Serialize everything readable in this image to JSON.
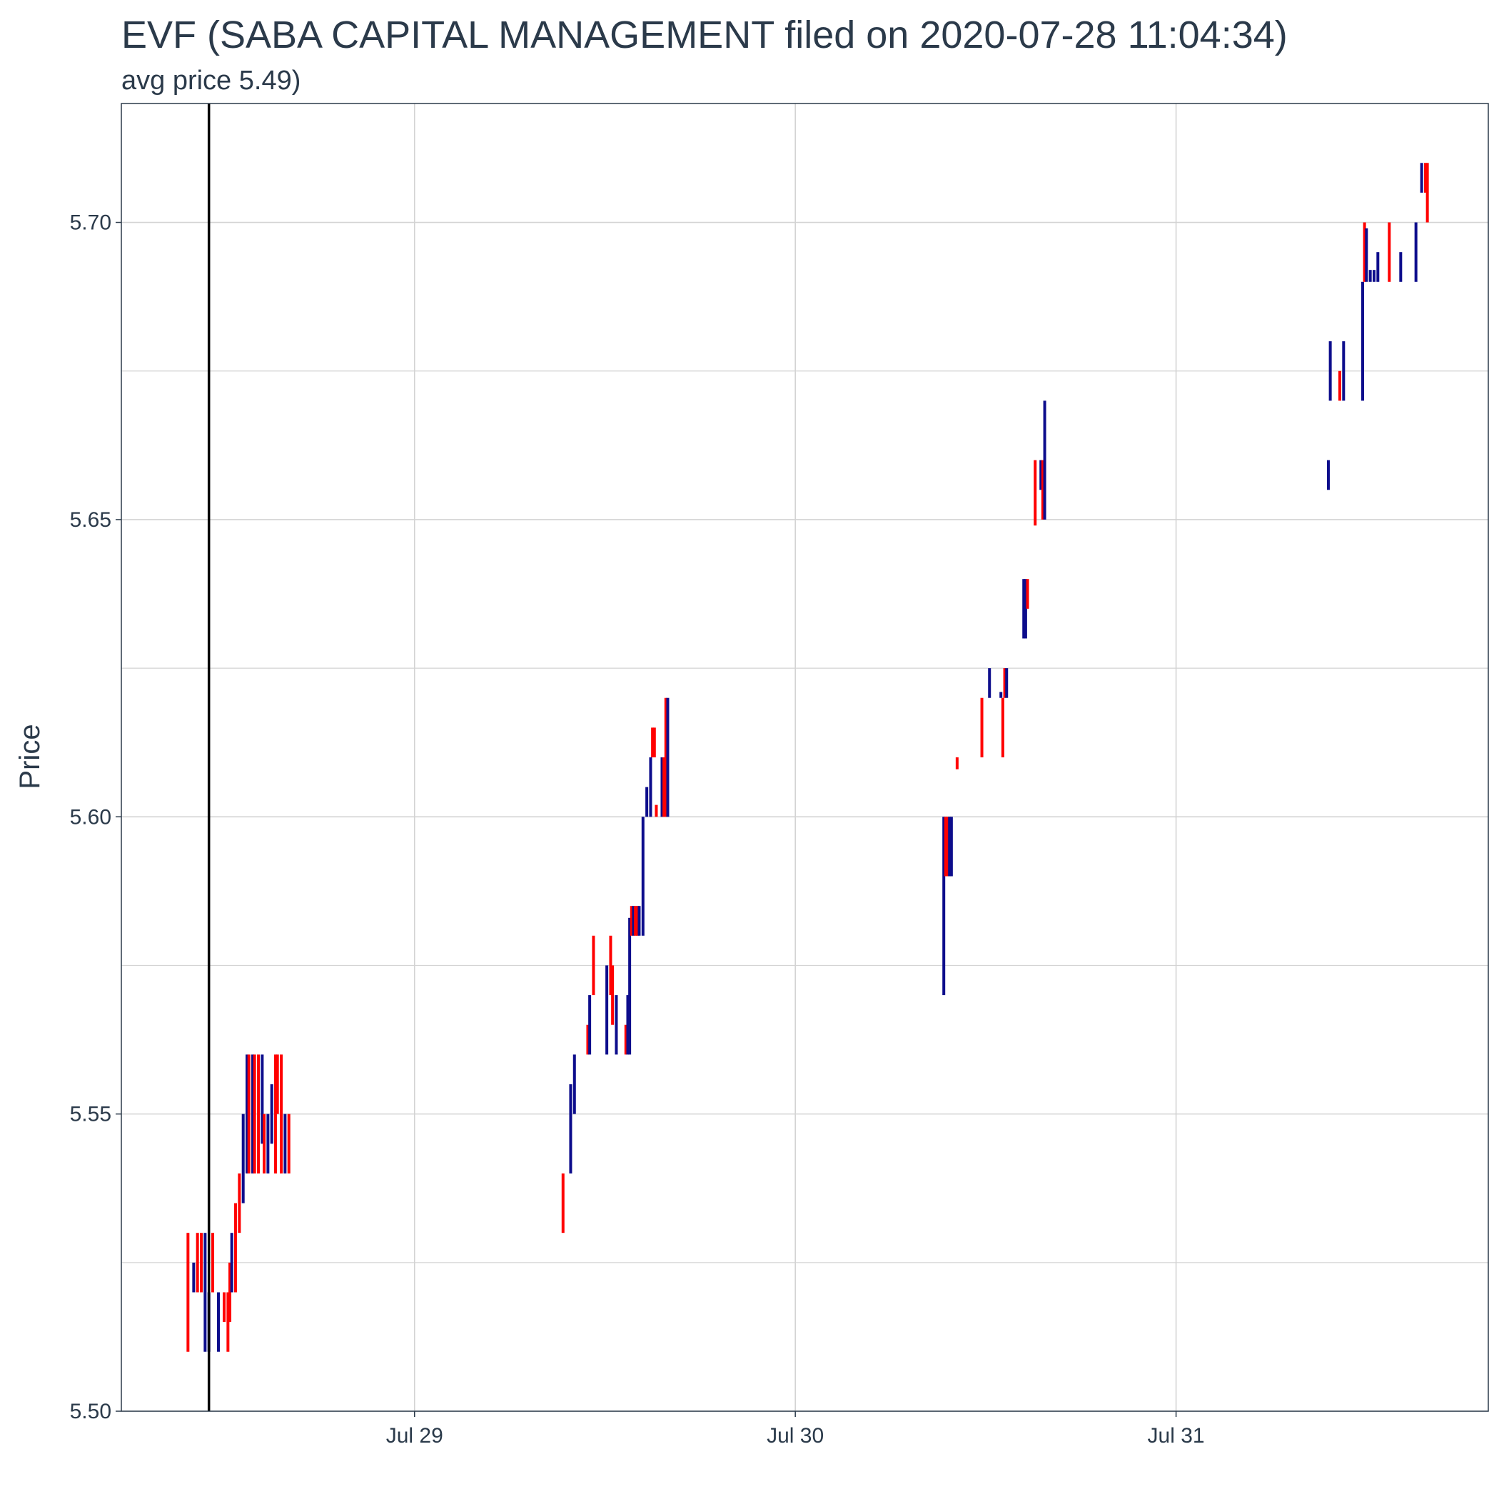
{
  "chart_data": {
    "type": "candlestick",
    "title": "EVF (SABA CAPITAL MANAGEMENT filed on 2020-07-28 11:04:34)",
    "subtitle": "avg price 5.49)",
    "ylabel": "Price",
    "xlabel": "",
    "ylim": [
      5.5,
      5.72
    ],
    "y_ticks": [
      "5.50",
      "5.55",
      "5.60",
      "5.65",
      "5.70"
    ],
    "y_tick_values": [
      5.5,
      5.55,
      5.6,
      5.65,
      5.7
    ],
    "y_minor_values": [
      5.525,
      5.575,
      5.625,
      5.675
    ],
    "xlim": [
      28.23,
      31.82
    ],
    "x_ticks": [
      "Jul 29",
      "Jul 30",
      "Jul 31"
    ],
    "x_tick_values": [
      29.0,
      30.0,
      31.0
    ],
    "filing_marker_x": 28.46,
    "grid": true,
    "legend": "none",
    "colors": {
      "up": "#0d0d8c",
      "down": "#ff0000",
      "marker": "#000000",
      "grid": "#d3d3d3",
      "text": "#2b3a4a"
    },
    "series": [
      {
        "x": 28.405,
        "low": 5.51,
        "high": 5.53,
        "color": "down"
      },
      {
        "x": 28.42,
        "low": 5.52,
        "high": 5.525,
        "color": "up"
      },
      {
        "x": 28.43,
        "low": 5.52,
        "high": 5.53,
        "color": "down"
      },
      {
        "x": 28.44,
        "low": 5.52,
        "high": 5.53,
        "color": "down"
      },
      {
        "x": 28.45,
        "low": 5.51,
        "high": 5.53,
        "color": "up"
      },
      {
        "x": 28.46,
        "low": 5.51,
        "high": 5.52,
        "color": "up"
      },
      {
        "x": 28.47,
        "low": 5.52,
        "high": 5.53,
        "color": "down"
      },
      {
        "x": 28.485,
        "low": 5.51,
        "high": 5.52,
        "color": "up"
      },
      {
        "x": 28.5,
        "low": 5.515,
        "high": 5.52,
        "color": "down"
      },
      {
        "x": 28.51,
        "low": 5.51,
        "high": 5.52,
        "color": "down"
      },
      {
        "x": 28.515,
        "low": 5.515,
        "high": 5.525,
        "color": "down"
      },
      {
        "x": 28.52,
        "low": 5.52,
        "high": 5.53,
        "color": "up"
      },
      {
        "x": 28.53,
        "low": 5.52,
        "high": 5.535,
        "color": "down"
      },
      {
        "x": 28.54,
        "low": 5.53,
        "high": 5.54,
        "color": "down"
      },
      {
        "x": 28.55,
        "low": 5.535,
        "high": 5.55,
        "color": "up"
      },
      {
        "x": 28.56,
        "low": 5.54,
        "high": 5.56,
        "color": "up"
      },
      {
        "x": 28.565,
        "low": 5.54,
        "high": 5.56,
        "color": "down"
      },
      {
        "x": 28.575,
        "low": 5.54,
        "high": 5.56,
        "color": "up"
      },
      {
        "x": 28.58,
        "low": 5.54,
        "high": 5.56,
        "color": "down"
      },
      {
        "x": 28.59,
        "low": 5.54,
        "high": 5.56,
        "color": "down"
      },
      {
        "x": 28.6,
        "low": 5.545,
        "high": 5.56,
        "color": "up"
      },
      {
        "x": 28.605,
        "low": 5.54,
        "high": 5.55,
        "color": "down"
      },
      {
        "x": 28.615,
        "low": 5.54,
        "high": 5.55,
        "color": "up"
      },
      {
        "x": 28.625,
        "low": 5.545,
        "high": 5.555,
        "color": "up"
      },
      {
        "x": 28.635,
        "low": 5.54,
        "high": 5.56,
        "color": "down"
      },
      {
        "x": 28.64,
        "low": 5.55,
        "high": 5.56,
        "color": "down"
      },
      {
        "x": 28.65,
        "low": 5.54,
        "high": 5.56,
        "color": "down"
      },
      {
        "x": 28.66,
        "low": 5.54,
        "high": 5.55,
        "color": "up"
      },
      {
        "x": 28.67,
        "low": 5.54,
        "high": 5.55,
        "color": "down"
      },
      {
        "x": 29.39,
        "low": 5.53,
        "high": 5.54,
        "color": "down"
      },
      {
        "x": 29.41,
        "low": 5.54,
        "high": 5.555,
        "color": "up"
      },
      {
        "x": 29.42,
        "low": 5.55,
        "high": 5.56,
        "color": "up"
      },
      {
        "x": 29.455,
        "low": 5.56,
        "high": 5.565,
        "color": "down"
      },
      {
        "x": 29.46,
        "low": 5.56,
        "high": 5.57,
        "color": "up"
      },
      {
        "x": 29.47,
        "low": 5.57,
        "high": 5.58,
        "color": "down"
      },
      {
        "x": 29.505,
        "low": 5.56,
        "high": 5.575,
        "color": "up"
      },
      {
        "x": 29.515,
        "low": 5.57,
        "high": 5.58,
        "color": "down"
      },
      {
        "x": 29.52,
        "low": 5.565,
        "high": 5.575,
        "color": "down"
      },
      {
        "x": 29.53,
        "low": 5.56,
        "high": 5.57,
        "color": "up"
      },
      {
        "x": 29.555,
        "low": 5.56,
        "high": 5.565,
        "color": "down"
      },
      {
        "x": 29.56,
        "low": 5.56,
        "high": 5.57,
        "color": "up"
      },
      {
        "x": 29.565,
        "low": 5.56,
        "high": 5.583,
        "color": "up"
      },
      {
        "x": 29.57,
        "low": 5.58,
        "high": 5.585,
        "color": "down"
      },
      {
        "x": 29.575,
        "low": 5.58,
        "high": 5.585,
        "color": "up"
      },
      {
        "x": 29.58,
        "low": 5.58,
        "high": 5.585,
        "color": "down"
      },
      {
        "x": 29.585,
        "low": 5.58,
        "high": 5.585,
        "color": "down"
      },
      {
        "x": 29.59,
        "low": 5.58,
        "high": 5.585,
        "color": "up"
      },
      {
        "x": 29.6,
        "low": 5.58,
        "high": 5.6,
        "color": "up"
      },
      {
        "x": 29.61,
        "low": 5.6,
        "high": 5.605,
        "color": "up"
      },
      {
        "x": 29.62,
        "low": 5.6,
        "high": 5.61,
        "color": "up"
      },
      {
        "x": 29.625,
        "low": 5.61,
        "high": 5.615,
        "color": "down"
      },
      {
        "x": 29.63,
        "low": 5.61,
        "high": 5.615,
        "color": "down"
      },
      {
        "x": 29.635,
        "low": 5.6,
        "high": 5.602,
        "color": "down"
      },
      {
        "x": 29.65,
        "low": 5.6,
        "high": 5.61,
        "color": "up"
      },
      {
        "x": 29.655,
        "low": 5.6,
        "high": 5.61,
        "color": "down"
      },
      {
        "x": 29.66,
        "low": 5.6,
        "high": 5.62,
        "color": "down"
      },
      {
        "x": 29.665,
        "low": 5.6,
        "high": 5.62,
        "color": "up"
      },
      {
        "x": 30.39,
        "low": 5.57,
        "high": 5.6,
        "color": "up"
      },
      {
        "x": 30.395,
        "low": 5.59,
        "high": 5.6,
        "color": "down"
      },
      {
        "x": 30.4,
        "low": 5.59,
        "high": 5.6,
        "color": "down"
      },
      {
        "x": 30.405,
        "low": 5.59,
        "high": 5.6,
        "color": "up"
      },
      {
        "x": 30.41,
        "low": 5.59,
        "high": 5.6,
        "color": "up"
      },
      {
        "x": 30.425,
        "low": 5.608,
        "high": 5.61,
        "color": "down"
      },
      {
        "x": 30.49,
        "low": 5.61,
        "high": 5.62,
        "color": "down"
      },
      {
        "x": 30.51,
        "low": 5.62,
        "high": 5.625,
        "color": "up"
      },
      {
        "x": 30.54,
        "low": 5.62,
        "high": 5.621,
        "color": "up"
      },
      {
        "x": 30.545,
        "low": 5.61,
        "high": 5.62,
        "color": "down"
      },
      {
        "x": 30.55,
        "low": 5.62,
        "high": 5.625,
        "color": "down"
      },
      {
        "x": 30.555,
        "low": 5.62,
        "high": 5.625,
        "color": "up"
      },
      {
        "x": 30.6,
        "low": 5.63,
        "high": 5.64,
        "color": "up"
      },
      {
        "x": 30.605,
        "low": 5.63,
        "high": 5.64,
        "color": "up"
      },
      {
        "x": 30.61,
        "low": 5.635,
        "high": 5.64,
        "color": "down"
      },
      {
        "x": 30.63,
        "low": 5.649,
        "high": 5.66,
        "color": "down"
      },
      {
        "x": 30.645,
        "low": 5.655,
        "high": 5.66,
        "color": "up"
      },
      {
        "x": 30.65,
        "low": 5.65,
        "high": 5.66,
        "color": "down"
      },
      {
        "x": 30.655,
        "low": 5.65,
        "high": 5.67,
        "color": "up"
      },
      {
        "x": 31.4,
        "low": 5.655,
        "high": 5.66,
        "color": "up"
      },
      {
        "x": 31.405,
        "low": 5.67,
        "high": 5.68,
        "color": "up"
      },
      {
        "x": 31.43,
        "low": 5.67,
        "high": 5.675,
        "color": "down"
      },
      {
        "x": 31.44,
        "low": 5.67,
        "high": 5.68,
        "color": "up"
      },
      {
        "x": 31.49,
        "low": 5.67,
        "high": 5.69,
        "color": "up"
      },
      {
        "x": 31.495,
        "low": 5.69,
        "high": 5.7,
        "color": "down"
      },
      {
        "x": 31.5,
        "low": 5.69,
        "high": 5.699,
        "color": "up"
      },
      {
        "x": 31.51,
        "low": 5.69,
        "high": 5.692,
        "color": "up"
      },
      {
        "x": 31.52,
        "low": 5.69,
        "high": 5.692,
        "color": "up"
      },
      {
        "x": 31.53,
        "low": 5.69,
        "high": 5.695,
        "color": "up"
      },
      {
        "x": 31.56,
        "low": 5.69,
        "high": 5.7,
        "color": "down"
      },
      {
        "x": 31.59,
        "low": 5.69,
        "high": 5.695,
        "color": "up"
      },
      {
        "x": 31.63,
        "low": 5.69,
        "high": 5.7,
        "color": "up"
      },
      {
        "x": 31.645,
        "low": 5.705,
        "high": 5.71,
        "color": "up"
      },
      {
        "x": 31.655,
        "low": 5.705,
        "high": 5.71,
        "color": "down"
      },
      {
        "x": 31.66,
        "low": 5.7,
        "high": 5.71,
        "color": "down"
      }
    ]
  }
}
